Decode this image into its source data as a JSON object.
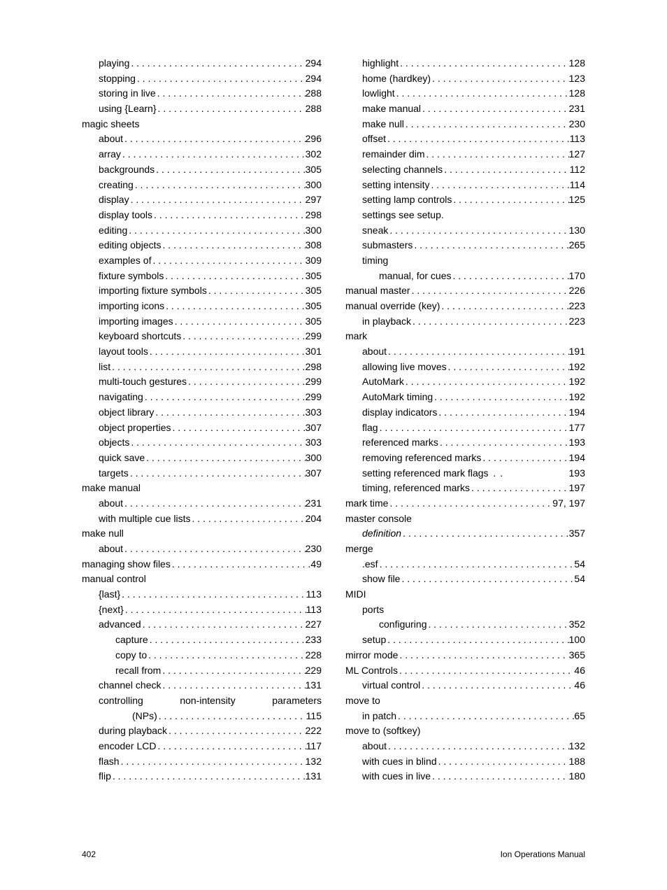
{
  "footer": {
    "pageNumber": "402",
    "title": "Ion Operations Manual"
  },
  "fontSizePt": 11,
  "textColor": "#000000",
  "backgroundColor": "#ffffff",
  "leftColumn": [
    {
      "type": "entry",
      "indent": 1,
      "label": "playing",
      "page": "294"
    },
    {
      "type": "entry",
      "indent": 1,
      "label": "stopping",
      "page": "294"
    },
    {
      "type": "entry",
      "indent": 1,
      "label": "storing in live",
      "page": "288"
    },
    {
      "type": "entry",
      "indent": 1,
      "label": "using {Learn}",
      "page": "288"
    },
    {
      "type": "heading",
      "indent": 0,
      "label": "magic sheets"
    },
    {
      "type": "entry",
      "indent": 1,
      "label": "about",
      "page": "296"
    },
    {
      "type": "entry",
      "indent": 1,
      "label": "array",
      "page": "302"
    },
    {
      "type": "entry",
      "indent": 1,
      "label": "backgrounds",
      "page": "305"
    },
    {
      "type": "entry",
      "indent": 1,
      "label": "creating",
      "page": "300"
    },
    {
      "type": "entry",
      "indent": 1,
      "label": "display",
      "page": "297"
    },
    {
      "type": "entry",
      "indent": 1,
      "label": "display tools",
      "page": "298"
    },
    {
      "type": "entry",
      "indent": 1,
      "label": "editing",
      "page": "300"
    },
    {
      "type": "entry",
      "indent": 1,
      "label": "editing objects",
      "page": "308"
    },
    {
      "type": "entry",
      "indent": 1,
      "label": "examples of",
      "page": "309"
    },
    {
      "type": "entry",
      "indent": 1,
      "label": "fixture symbols",
      "page": "305"
    },
    {
      "type": "entry",
      "indent": 1,
      "label": "importing fixture symbols",
      "page": "305"
    },
    {
      "type": "entry",
      "indent": 1,
      "label": "importing icons",
      "page": "305"
    },
    {
      "type": "entry",
      "indent": 1,
      "label": "importing images",
      "page": "305"
    },
    {
      "type": "entry",
      "indent": 1,
      "label": "keyboard shortcuts",
      "page": "299"
    },
    {
      "type": "entry",
      "indent": 1,
      "label": "layout tools",
      "page": "301"
    },
    {
      "type": "entry",
      "indent": 1,
      "label": "list",
      "page": "298"
    },
    {
      "type": "entry",
      "indent": 1,
      "label": "multi-touch gestures",
      "page": "299"
    },
    {
      "type": "entry",
      "indent": 1,
      "label": "navigating",
      "page": "299"
    },
    {
      "type": "entry",
      "indent": 1,
      "label": "object library",
      "page": "303"
    },
    {
      "type": "entry",
      "indent": 1,
      "label": "object properties",
      "page": "307"
    },
    {
      "type": "entry",
      "indent": 1,
      "label": "objects",
      "page": "303"
    },
    {
      "type": "entry",
      "indent": 1,
      "label": "quick save",
      "page": "300"
    },
    {
      "type": "entry",
      "indent": 1,
      "label": "targets",
      "page": "307"
    },
    {
      "type": "heading",
      "indent": 0,
      "label": "make manual"
    },
    {
      "type": "entry",
      "indent": 1,
      "label": "about",
      "page": "231"
    },
    {
      "type": "entry",
      "indent": 1,
      "label": "with multiple cue lists",
      "page": "204"
    },
    {
      "type": "heading",
      "indent": 0,
      "label": "make null"
    },
    {
      "type": "entry",
      "indent": 1,
      "label": "about",
      "page": "230"
    },
    {
      "type": "entry",
      "indent": 0,
      "label": "managing show files",
      "page": "49"
    },
    {
      "type": "heading",
      "indent": 0,
      "label": "manual control"
    },
    {
      "type": "entry",
      "indent": 1,
      "label": "{last}",
      "page": "113"
    },
    {
      "type": "entry",
      "indent": 1,
      "label": "{next}",
      "page": "113"
    },
    {
      "type": "entry",
      "indent": 1,
      "label": "advanced",
      "page": "227"
    },
    {
      "type": "entry",
      "indent": 2,
      "label": "capture",
      "page": "233"
    },
    {
      "type": "entry",
      "indent": 2,
      "label": "copy to",
      "page": "228"
    },
    {
      "type": "entry",
      "indent": 2,
      "label": "recall from",
      "page": "229"
    },
    {
      "type": "entry",
      "indent": 1,
      "label": "channel check",
      "page": "131"
    },
    {
      "type": "wrap",
      "indent": 1,
      "w1": "controlling",
      "w2": "non-intensity",
      "w3": "parameters",
      "cont": "(NPs)",
      "contIndent": 3,
      "page": "115"
    },
    {
      "type": "entry",
      "indent": 1,
      "label": "during playback",
      "page": "222"
    },
    {
      "type": "entry",
      "indent": 1,
      "label": "encoder LCD",
      "page": "117"
    },
    {
      "type": "entry",
      "indent": 1,
      "label": "flash",
      "page": "132"
    },
    {
      "type": "entry",
      "indent": 1,
      "label": "flip",
      "page": "131"
    }
  ],
  "rightColumn": [
    {
      "type": "entry",
      "indent": 1,
      "label": "highlight",
      "page": "128"
    },
    {
      "type": "entry",
      "indent": 1,
      "label": "home (hardkey)",
      "page": "123"
    },
    {
      "type": "entry",
      "indent": 1,
      "label": "lowlight",
      "page": "128"
    },
    {
      "type": "entry",
      "indent": 1,
      "label": "make manual",
      "page": "231"
    },
    {
      "type": "entry",
      "indent": 1,
      "label": "make null",
      "page": "230"
    },
    {
      "type": "entry",
      "indent": 1,
      "label": "offset",
      "page": "113"
    },
    {
      "type": "entry",
      "indent": 1,
      "label": "remainder dim",
      "page": "127"
    },
    {
      "type": "entry",
      "indent": 1,
      "label": "selecting channels",
      "page": "112"
    },
    {
      "type": "entry",
      "indent": 1,
      "label": "setting intensity",
      "page": "114"
    },
    {
      "type": "entry",
      "indent": 1,
      "label": "setting lamp controls",
      "page": "125"
    },
    {
      "type": "see",
      "indent": 1,
      "label": "settings ",
      "italic": "see setup."
    },
    {
      "type": "entry",
      "indent": 1,
      "label": "sneak",
      "page": "130"
    },
    {
      "type": "entry",
      "indent": 1,
      "label": "submasters",
      "page": "265"
    },
    {
      "type": "heading",
      "indent": 1,
      "label": "timing"
    },
    {
      "type": "entry",
      "indent": 2,
      "label": "manual, for cues",
      "page": "170"
    },
    {
      "type": "entry",
      "indent": 0,
      "label": "manual master",
      "page": "226"
    },
    {
      "type": "entry",
      "indent": 0,
      "label": "manual override (key)",
      "page": "223"
    },
    {
      "type": "entry",
      "indent": 1,
      "label": "in playback",
      "page": "223"
    },
    {
      "type": "heading",
      "indent": 0,
      "label": "mark"
    },
    {
      "type": "entry",
      "indent": 1,
      "label": "about",
      "page": "191"
    },
    {
      "type": "entry",
      "indent": 1,
      "label": "allowing live moves",
      "page": "192"
    },
    {
      "type": "entry",
      "indent": 1,
      "label": "AutoMark",
      "page": "192"
    },
    {
      "type": "entry",
      "indent": 1,
      "label": "AutoMark timing",
      "page": "192"
    },
    {
      "type": "entry",
      "indent": 1,
      "label": "display indicators",
      "page": "194"
    },
    {
      "type": "entry",
      "indent": 1,
      "label": "flag",
      "page": "177"
    },
    {
      "type": "entry",
      "indent": 1,
      "label": "referenced marks",
      "page": "193"
    },
    {
      "type": "entry",
      "indent": 1,
      "label": "removing referenced marks",
      "page": "194"
    },
    {
      "type": "entry",
      "indent": 1,
      "label": "setting referenced mark flags",
      "page": "193",
      "dots": "space"
    },
    {
      "type": "entry",
      "indent": 1,
      "label": "timing, referenced marks",
      "page": "197"
    },
    {
      "type": "entry",
      "indent": 0,
      "label": "mark time",
      "page": "97, 197"
    },
    {
      "type": "heading",
      "indent": 0,
      "label": "master console"
    },
    {
      "type": "entry",
      "indent": 1,
      "label": "definition",
      "page": "357",
      "labelItalic": true
    },
    {
      "type": "heading",
      "indent": 0,
      "label": "merge"
    },
    {
      "type": "entry",
      "indent": 1,
      "label": ".esf",
      "page": "54"
    },
    {
      "type": "entry",
      "indent": 1,
      "label": "show file",
      "page": "54"
    },
    {
      "type": "heading",
      "indent": 0,
      "label": "MIDI"
    },
    {
      "type": "heading",
      "indent": 1,
      "label": "ports"
    },
    {
      "type": "entry",
      "indent": 2,
      "label": "configuring",
      "page": "352"
    },
    {
      "type": "entry",
      "indent": 1,
      "label": "setup",
      "page": "100"
    },
    {
      "type": "entry",
      "indent": 0,
      "label": "mirror mode",
      "page": "365"
    },
    {
      "type": "entry",
      "indent": 0,
      "label": "ML Controls",
      "page": "46"
    },
    {
      "type": "entry",
      "indent": 1,
      "label": "virtual control",
      "page": "46"
    },
    {
      "type": "heading",
      "indent": 0,
      "label": "move to"
    },
    {
      "type": "entry",
      "indent": 1,
      "label": "in patch",
      "page": "65"
    },
    {
      "type": "heading",
      "indent": 0,
      "label": "move to (softkey)"
    },
    {
      "type": "entry",
      "indent": 1,
      "label": "about",
      "page": "132"
    },
    {
      "type": "entry",
      "indent": 1,
      "label": "with cues in blind",
      "page": "188"
    },
    {
      "type": "entry",
      "indent": 1,
      "label": "with cues in live",
      "page": "180"
    }
  ]
}
